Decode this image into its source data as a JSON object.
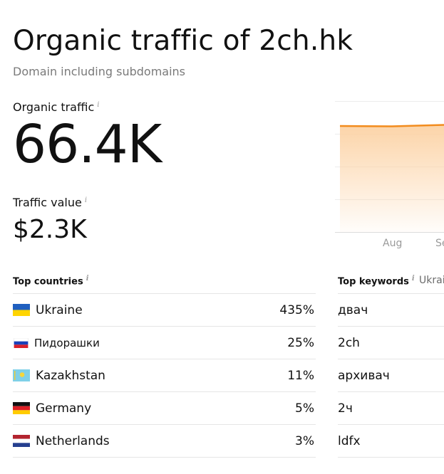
{
  "header": {
    "title": "Organic traffic of 2ch.hk",
    "subtitle": "Domain including subdomains"
  },
  "metrics": {
    "traffic_label": "Organic traffic",
    "traffic_value": "66.4K",
    "value_label": "Traffic value",
    "value_amount": "$2.3K",
    "info_glyph": "i"
  },
  "chart": {
    "x_ticks": [
      "Aug",
      "Se"
    ],
    "line_color": "#f28c1e",
    "fill_color": "#fcd2a4"
  },
  "top_countries": {
    "heading": "Top countries",
    "items": [
      {
        "name": "Ukraine",
        "share": "435%",
        "flag": "ukraine-flag"
      },
      {
        "name": "Пидорашки",
        "share": "25%",
        "flag": "russia-flag"
      },
      {
        "name": "Kazakhstan",
        "share": "11%",
        "flag": "kazakhstan-flag"
      },
      {
        "name": "Germany",
        "share": "5%",
        "flag": "germany-flag"
      },
      {
        "name": "Netherlands",
        "share": "3%",
        "flag": "netherlands-flag"
      }
    ]
  },
  "top_keywords": {
    "heading": "Top keywords",
    "tab_label": "Ukrai",
    "items": [
      "двач",
      "2ch",
      "архивач",
      "2ч",
      "ldfx"
    ]
  }
}
